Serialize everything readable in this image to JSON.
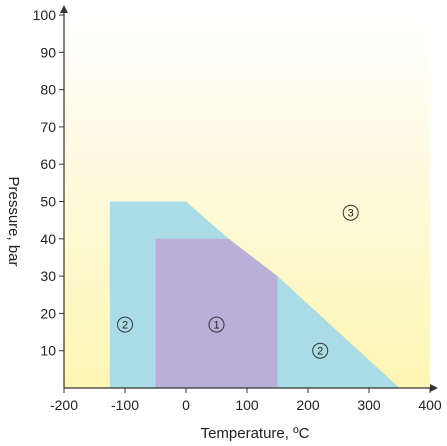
{
  "chart_data": {
    "type": "area",
    "xlabel": "Temperature, ºC",
    "ylabel": "Pressure, bar",
    "xlim": [
      -200,
      400
    ],
    "ylim": [
      0,
      100
    ],
    "xticks": [
      -200,
      -100,
      0,
      100,
      200,
      300,
      400
    ],
    "yticks": [
      10,
      20,
      30,
      40,
      50,
      60,
      70,
      80,
      90,
      100
    ],
    "grid": false,
    "colors": {
      "background_top": "#ffffff",
      "background_bottom": "#fdf5b3",
      "region_2": "#a9dce6",
      "region_1": "#b9afd9",
      "axis": "#333333"
    },
    "regions": [
      {
        "label": "2",
        "polygon": [
          [
            -125,
            0
          ],
          [
            -125,
            50
          ],
          [
            0,
            50
          ],
          [
            70,
            40
          ],
          [
            150,
            30
          ],
          [
            350,
            0
          ]
        ],
        "label_point": [
          -100,
          17
        ]
      },
      {
        "label": "1",
        "polygon": [
          [
            -50,
            0
          ],
          [
            -50,
            40
          ],
          [
            70,
            40
          ],
          [
            150,
            30
          ],
          [
            150,
            0
          ]
        ],
        "label_point": [
          50,
          17
        ]
      },
      {
        "label": "2",
        "label_point": [
          220,
          10
        ]
      },
      {
        "label": "3",
        "label_point": [
          270,
          47
        ]
      }
    ]
  }
}
